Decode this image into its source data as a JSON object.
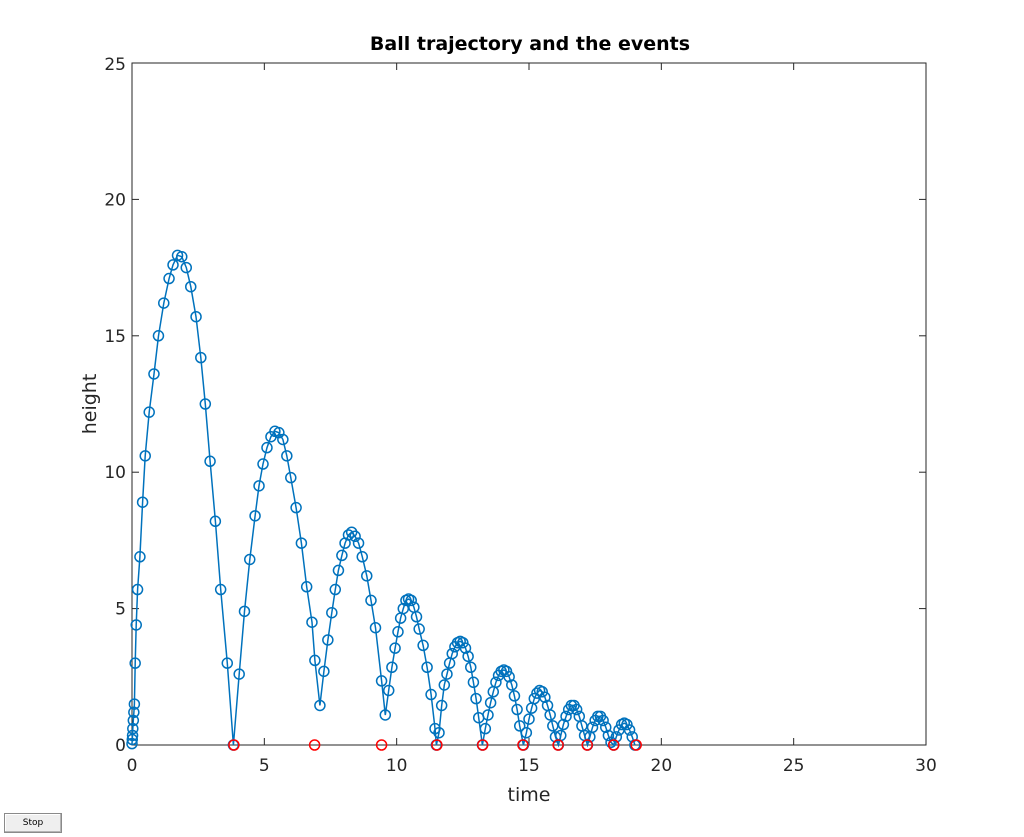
{
  "controls": {
    "stop_label": "Stop"
  },
  "colors": {
    "trajectory": "#0072BD",
    "events": "#FF0000",
    "axes": "#262626"
  },
  "chart_data": {
    "type": "line",
    "title": "Ball trajectory and the events",
    "xlabel": "time",
    "ylabel": "height",
    "xlim": [
      0,
      30
    ],
    "ylim": [
      0,
      25
    ],
    "xticks": [
      "0",
      "5",
      "10",
      "15",
      "20",
      "25",
      "30"
    ],
    "yticks": [
      "0",
      "5",
      "10",
      "15",
      "20"
    ],
    "yticks_values": [
      0,
      5,
      10,
      15,
      20
    ],
    "xticks_values": [
      0,
      5,
      10,
      15,
      20,
      25,
      30
    ],
    "ytick_top": "25",
    "grid": false,
    "legend": "none",
    "series": [
      {
        "marker": "circle",
        "x": [
          0.0,
          0.01,
          0.02,
          0.03,
          0.05,
          0.07,
          0.09,
          0.12,
          0.16,
          0.21,
          0.3,
          0.4,
          0.5,
          0.65,
          0.83,
          1.0,
          1.2,
          1.4,
          1.55,
          1.72,
          1.88,
          2.05,
          2.22,
          2.42,
          2.6,
          2.77,
          2.95,
          3.15,
          3.35,
          3.6,
          3.83,
          4.05,
          4.25,
          4.45,
          4.65,
          4.8,
          4.95,
          5.1,
          5.25,
          5.4,
          5.55,
          5.7,
          5.85,
          6.0,
          6.2,
          6.4,
          6.6,
          6.8,
          6.91,
          7.1,
          7.25,
          7.4,
          7.55,
          7.68,
          7.8,
          7.93,
          8.05,
          8.18,
          8.3,
          8.43,
          8.56,
          8.7,
          8.87,
          9.03,
          9.2,
          9.43,
          9.57,
          9.7,
          9.82,
          9.94,
          10.05,
          10.15,
          10.25,
          10.35,
          10.45,
          10.55,
          10.65,
          10.75,
          10.85,
          11.0,
          11.15,
          11.3,
          11.45,
          11.5,
          11.6,
          11.7,
          11.8,
          11.9,
          12.0,
          12.1,
          12.2,
          12.3,
          12.4,
          12.5,
          12.6,
          12.7,
          12.8,
          12.9,
          13.0,
          13.1,
          13.24,
          13.35,
          13.45,
          13.55,
          13.65,
          13.75,
          13.85,
          13.95,
          14.05,
          14.15,
          14.25,
          14.35,
          14.45,
          14.55,
          14.65,
          14.79,
          14.9,
          15.0,
          15.1,
          15.2,
          15.3,
          15.4,
          15.5,
          15.6,
          15.7,
          15.8,
          15.9,
          16.0,
          16.11,
          16.2,
          16.3,
          16.4,
          16.5,
          16.6,
          16.7,
          16.8,
          16.9,
          17.0,
          17.1,
          17.21,
          17.3,
          17.4,
          17.5,
          17.6,
          17.7,
          17.8,
          17.9,
          18.0,
          18.1,
          18.2,
          18.3,
          18.4,
          18.5,
          18.6,
          18.7,
          18.8,
          18.9,
          19.0
        ],
        "y": [
          0.05,
          0.2,
          0.35,
          0.6,
          0.9,
          1.2,
          1.5,
          3.0,
          4.4,
          5.7,
          6.9,
          8.9,
          10.6,
          12.2,
          13.6,
          15.0,
          16.2,
          17.1,
          17.6,
          17.95,
          17.9,
          17.5,
          16.8,
          15.7,
          14.2,
          12.5,
          10.4,
          8.2,
          5.7,
          3.0,
          0.0,
          2.6,
          4.9,
          6.8,
          8.4,
          9.5,
          10.3,
          10.9,
          11.3,
          11.5,
          11.45,
          11.2,
          10.6,
          9.8,
          8.7,
          7.4,
          5.8,
          4.5,
          3.1,
          1.45,
          2.7,
          3.85,
          4.85,
          5.7,
          6.4,
          6.95,
          7.4,
          7.7,
          7.8,
          7.65,
          7.4,
          6.9,
          6.2,
          5.3,
          4.3,
          2.35,
          1.1,
          2.0,
          2.85,
          3.55,
          4.15,
          4.65,
          5.0,
          5.3,
          5.35,
          5.3,
          5.05,
          4.7,
          4.25,
          3.65,
          2.85,
          1.85,
          0.6,
          0.0,
          0.45,
          1.45,
          2.2,
          2.6,
          3.0,
          3.35,
          3.6,
          3.75,
          3.8,
          3.75,
          3.55,
          3.25,
          2.85,
          2.3,
          1.7,
          1.0,
          0.0,
          0.6,
          1.1,
          1.55,
          1.95,
          2.3,
          2.55,
          2.7,
          2.75,
          2.7,
          2.5,
          2.2,
          1.8,
          1.3,
          0.7,
          0.0,
          0.45,
          0.95,
          1.35,
          1.7,
          1.9,
          2.0,
          1.95,
          1.75,
          1.45,
          1.1,
          0.7,
          0.3,
          0.0,
          0.35,
          0.75,
          1.05,
          1.3,
          1.45,
          1.45,
          1.3,
          1.05,
          0.7,
          0.35,
          0.0,
          0.3,
          0.65,
          0.9,
          1.05,
          1.05,
          0.9,
          0.65,
          0.35,
          0.1,
          0.0,
          0.3,
          0.55,
          0.75,
          0.8,
          0.75,
          0.55,
          0.3,
          0.0
        ]
      },
      {
        "marker": "circle",
        "x": [
          3.85,
          6.9,
          9.43,
          11.52,
          13.25,
          14.77,
          16.1,
          17.2,
          18.2,
          19.05
        ],
        "y": [
          0,
          0,
          0,
          0,
          0,
          0,
          0,
          0,
          0,
          0
        ]
      }
    ]
  }
}
